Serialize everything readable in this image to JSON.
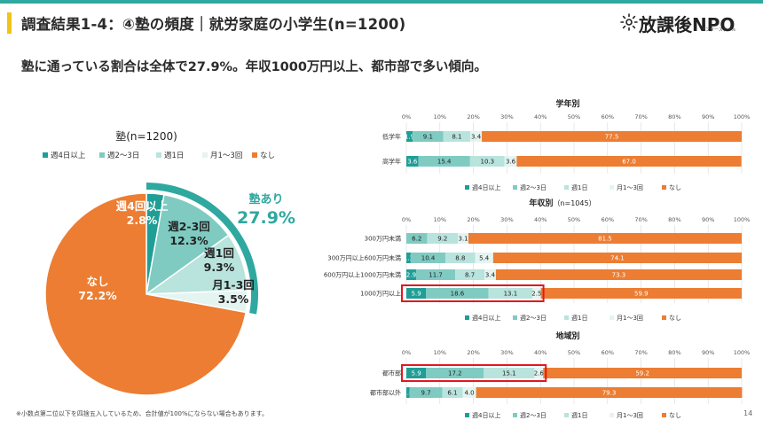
{
  "header": {
    "title": "調査結果1-4：④塾の頻度｜就労家庭の小学生(n=1200)",
    "subtitle": "塾に通っている割合は全体で27.9%。年収1000万円以上、都市部で多い傾向。",
    "logo_text": "放課後NPO",
    "logo_sub": "アフタースクール"
  },
  "footnote": "※小数点第二位以下を四捨五入しているため、合計値が100%にならない場合もあります。",
  "page_number": "14",
  "colors": {
    "weekly4": "#1f9e96",
    "weekly23": "#7fcbc2",
    "weekly1": "#b9e3dd",
    "monthly13": "#e4f4f1",
    "none": "#ec7d32",
    "highlight": "#e0191f",
    "accent": "#2fa8a0",
    "title_bar": "#f0c419"
  },
  "chart_data": [
    {
      "type": "pie",
      "title": "塾(n=1200)",
      "legend_position": "top",
      "categories": [
        "週4日以上",
        "週2～3日",
        "週1日",
        "月1～3回",
        "なし"
      ],
      "slice_labels": [
        "週4回以上",
        "週2-3回",
        "週1回",
        "月1-3回",
        "なし"
      ],
      "values": [
        2.8,
        12.3,
        9.3,
        3.5,
        72.2
      ],
      "annotation": {
        "label": "塾あり",
        "value": "27.9%"
      }
    },
    {
      "type": "bar",
      "stacked": true,
      "orientation": "horizontal",
      "title": "学年別",
      "categories": [
        "低学年",
        "高学年"
      ],
      "xlim": [
        0,
        100
      ],
      "ticks": [
        "0%",
        "10%",
        "20%",
        "30%",
        "40%",
        "50%",
        "60%",
        "70%",
        "80%",
        "90%",
        "100%"
      ],
      "grid": true,
      "legend_position": "bottom",
      "series": [
        {
          "name": "週4日以上",
          "values": [
            1.9,
            3.6
          ]
        },
        {
          "name": "週2～3日",
          "values": [
            9.1,
            15.4
          ]
        },
        {
          "name": "週1日",
          "values": [
            8.1,
            10.3
          ]
        },
        {
          "name": "月1～3回",
          "values": [
            3.4,
            3.6
          ]
        },
        {
          "name": "なし",
          "values": [
            77.5,
            67.0
          ]
        }
      ],
      "data_labels": [
        [
          "1.9",
          "9.1",
          "8.1",
          "3.4",
          "77.5"
        ],
        [
          "3.6",
          "15.4",
          "10.3",
          "3.6",
          "67.0"
        ]
      ],
      "highlight_rows": []
    },
    {
      "type": "bar",
      "stacked": true,
      "orientation": "horizontal",
      "title": "年収別",
      "title_note": "（n=1045）",
      "categories": [
        "300万円未満",
        "300万円以上600万円未満",
        "600万円以上1000万円未満",
        "1000万円以上"
      ],
      "xlim": [
        0,
        100
      ],
      "ticks": [
        "0%",
        "10%",
        "20%",
        "30%",
        "40%",
        "50%",
        "60%",
        "70%",
        "80%",
        "90%",
        "100%"
      ],
      "grid": true,
      "legend_position": "bottom",
      "series": [
        {
          "name": "週4日以上",
          "values": [
            0,
            1.3,
            2.9,
            5.9
          ]
        },
        {
          "name": "週2～3日",
          "values": [
            6.2,
            10.4,
            11.7,
            18.6
          ]
        },
        {
          "name": "週1日",
          "values": [
            9.2,
            8.8,
            8.7,
            13.1
          ]
        },
        {
          "name": "月1～3回",
          "values": [
            3.1,
            5.4,
            3.4,
            2.5
          ]
        },
        {
          "name": "なし",
          "values": [
            81.5,
            74.1,
            73.3,
            59.9
          ]
        }
      ],
      "data_labels": [
        [
          "",
          "6.2",
          "9.2",
          "3.1",
          "81.5"
        ],
        [
          "1.3",
          "10.4",
          "8.8",
          "5.4",
          "74.1"
        ],
        [
          "2.9",
          "11.7",
          "8.7",
          "3.4",
          "73.3"
        ],
        [
          "5.9",
          "18.6",
          "13.1",
          "2.5",
          "59.9"
        ]
      ],
      "highlight_rows": [
        3
      ]
    },
    {
      "type": "bar",
      "stacked": true,
      "orientation": "horizontal",
      "title": "地域別",
      "categories": [
        "都市部",
        "都市部以外"
      ],
      "xlim": [
        0,
        100
      ],
      "ticks": [
        "0%",
        "10%",
        "20%",
        "30%",
        "40%",
        "50%",
        "60%",
        "70%",
        "80%",
        "90%",
        "100%"
      ],
      "grid": true,
      "legend_position": "bottom",
      "series": [
        {
          "name": "週4日以上",
          "values": [
            5.9,
            1.0
          ]
        },
        {
          "name": "週2～3日",
          "values": [
            17.2,
            9.7
          ]
        },
        {
          "name": "週1日",
          "values": [
            15.1,
            6.1
          ]
        },
        {
          "name": "月1～3回",
          "values": [
            2.6,
            4.0
          ]
        },
        {
          "name": "なし",
          "values": [
            59.2,
            79.3
          ]
        }
      ],
      "data_labels": [
        [
          "5.9",
          "17.2",
          "15.1",
          "2.6",
          "59.2"
        ],
        [
          "1.0",
          "9.7",
          "6.1",
          "4.0",
          "79.3"
        ]
      ],
      "highlight_rows": [
        0
      ]
    }
  ]
}
